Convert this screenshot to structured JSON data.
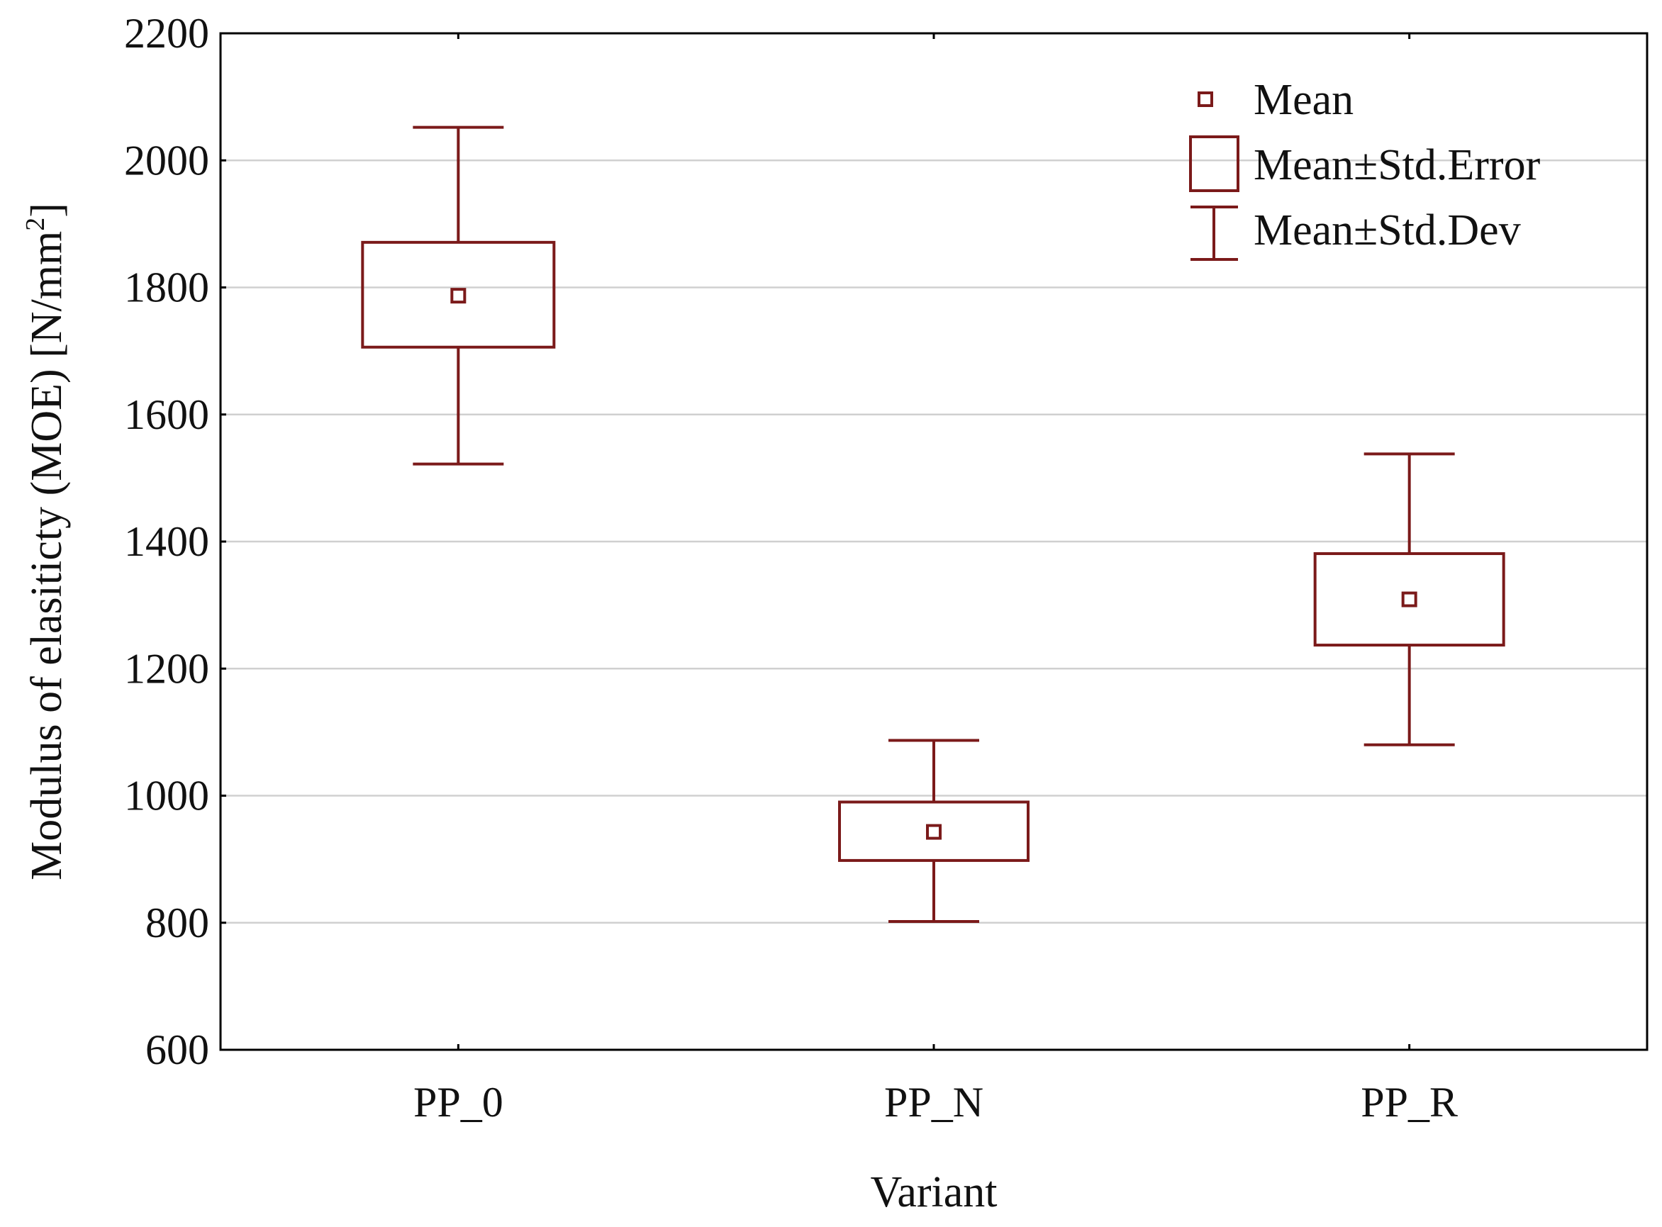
{
  "chart_data": {
    "type": "box",
    "title": "",
    "xlabel": "Variant",
    "ylabel_main": "Modulus of elasiticty (MOE) [N/mm",
    "ylabel_sup": "2",
    "ylabel_end": "]",
    "ylim": [
      600,
      2200
    ],
    "yticks": [
      600,
      800,
      1000,
      1200,
      1400,
      1600,
      1800,
      2000,
      2200
    ],
    "grid": true,
    "categories": [
      "PP_0",
      "PP_N",
      "PP_R"
    ],
    "series": [
      {
        "name": "PP_0",
        "mean": 1787,
        "se_low": 1706,
        "se_high": 1871,
        "sd_low": 1522,
        "sd_high": 2052
      },
      {
        "name": "PP_N",
        "mean": 943,
        "se_low": 898,
        "se_high": 990,
        "sd_low": 802,
        "sd_high": 1087
      },
      {
        "name": "PP_R",
        "mean": 1309,
        "se_low": 1237,
        "se_high": 1381,
        "sd_low": 1080,
        "sd_high": 1538
      }
    ],
    "legend": {
      "position": "top-right",
      "items": [
        "Mean",
        "Mean±Std.Error",
        "Mean±Std.Dev"
      ]
    },
    "colors": {
      "series": "#7b1a1a",
      "frame": "#000000",
      "grid": "#d0d0d0"
    }
  }
}
